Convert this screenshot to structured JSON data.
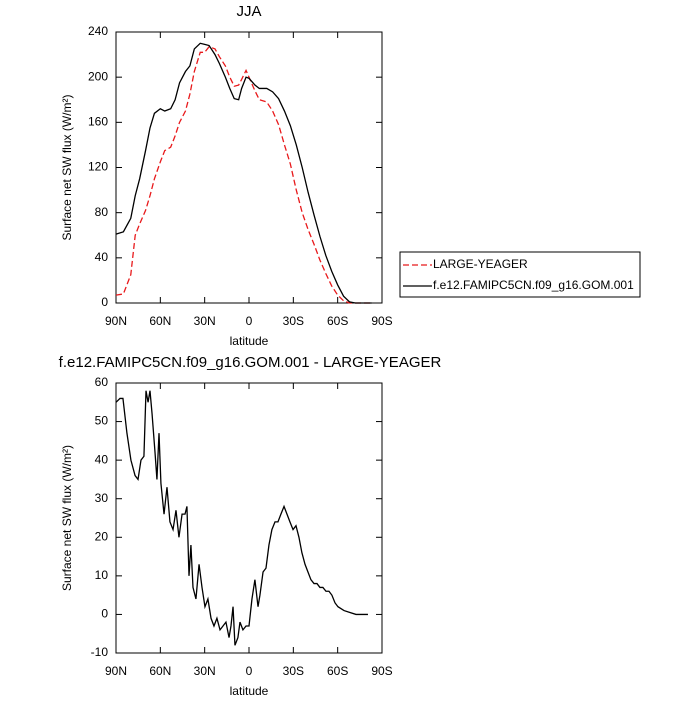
{
  "chart_data": [
    {
      "type": "line",
      "title": "JJA",
      "xlabel": "latitude",
      "ylabel": "Surface net SW flux (W/m²)",
      "x": [
        90,
        85,
        80,
        77,
        74,
        70,
        67,
        64,
        60,
        57,
        53,
        50,
        47,
        43,
        40,
        37,
        33,
        30,
        27,
        23,
        20,
        16,
        13,
        10,
        7,
        5,
        2,
        0,
        -4,
        -7,
        -12,
        -16,
        -20,
        -24,
        -28,
        -32,
        -36,
        -40,
        -44,
        -48,
        -52,
        -56,
        -60,
        -64,
        -68,
        -72,
        -78,
        -83
      ],
      "series": [
        {
          "name": "LARGE-YEAGER",
          "color": "#e8191b",
          "line_style": "dashed",
          "values": [
            7,
            8,
            25,
            60,
            70,
            82,
            95,
            110,
            125,
            135,
            138,
            148,
            160,
            170,
            185,
            205,
            222,
            222,
            227,
            225,
            218,
            210,
            200,
            192,
            193,
            198,
            206,
            200,
            188,
            180,
            178,
            170,
            158,
            140,
            123,
            100,
            80,
            65,
            52,
            38,
            26,
            15,
            7,
            2,
            0,
            0,
            0,
            0
          ]
        },
        {
          "name": "f.e12.FAMIPC5CN.f09_g16.GOM.001",
          "color": "#000000",
          "line_style": "solid",
          "values": [
            61,
            63,
            75,
            95,
            110,
            135,
            155,
            168,
            172,
            170,
            172,
            180,
            195,
            205,
            210,
            225,
            230,
            229,
            228,
            220,
            212,
            200,
            190,
            181,
            180,
            190,
            200,
            199,
            193,
            190,
            190,
            187,
            181,
            170,
            157,
            140,
            120,
            98,
            78,
            59,
            42,
            28,
            16,
            6,
            1,
            0,
            0,
            0
          ]
        }
      ],
      "xlim": [
        90,
        -90
      ],
      "xticks": [
        {
          "value": 90,
          "label": "90N"
        },
        {
          "value": 60,
          "label": "60N"
        },
        {
          "value": 30,
          "label": "30N"
        },
        0,
        {
          "value": -30,
          "label": "30S"
        },
        {
          "value": -60,
          "label": "60S"
        },
        {
          "value": -90,
          "label": "90S"
        }
      ],
      "ylim": [
        0,
        240
      ],
      "yticks": [
        0,
        40,
        80,
        120,
        160,
        200,
        240
      ],
      "legend": "right"
    },
    {
      "type": "line",
      "title": "f.e12.FAMIPC5CN.f09_g16.GOM.001 - LARGE-YEAGER",
      "xlabel": "latitude",
      "ylabel": "Surface net SW flux (W/m²)",
      "x": [
        90,
        87.3,
        85.3,
        82.6,
        79.9,
        77.1,
        75.1,
        73.1,
        71.1,
        69.7,
        68.3,
        67,
        65.6,
        63.6,
        62.3,
        60.9,
        59.6,
        57.5,
        55.5,
        53.5,
        51.4,
        49.4,
        47.4,
        45.3,
        43.3,
        42,
        40.6,
        39.3,
        37.9,
        35.9,
        33.8,
        31.8,
        29.8,
        27.8,
        25.7,
        23.7,
        21.7,
        19.6,
        17.6,
        15.6,
        13.5,
        12.2,
        10.8,
        9.5,
        7.5,
        6.1,
        4.1,
        2,
        0,
        -2,
        -4,
        -6.1,
        -7.4,
        -9.5,
        -11.5,
        -13.5,
        -15.5,
        -17.6,
        -19.6,
        -21.6,
        -23.7,
        -25.7,
        -27.7,
        -29.8,
        -31.8,
        -33.8,
        -35.8,
        -37.9,
        -39.9,
        -41.9,
        -44,
        -46,
        -48,
        -50,
        -52.1,
        -54.1,
        -56.1,
        -58.2,
        -60.2,
        -64.3,
        -68.3,
        -72.4,
        -76.4,
        -80.5
      ],
      "series": [
        {
          "name": null,
          "color": "#000000",
          "line_style": "solid",
          "values": [
            55,
            56,
            56,
            47,
            40,
            36,
            35,
            40,
            41,
            58,
            55,
            58,
            52,
            42,
            35,
            47,
            34,
            26,
            33,
            24,
            22,
            27,
            20,
            26,
            26,
            28,
            10,
            18,
            7,
            4,
            13,
            7,
            2,
            4,
            -1,
            -3,
            -1,
            -4,
            -3,
            -2,
            -6,
            -3,
            2,
            -8,
            -6,
            -2,
            -4,
            -3,
            -3,
            4,
            9,
            2,
            5,
            11,
            12,
            18,
            22,
            24,
            24,
            26,
            28,
            26,
            24,
            22,
            23,
            20,
            16,
            13,
            11,
            9,
            8,
            8,
            7,
            7,
            6,
            6,
            5,
            3,
            2,
            1,
            0.5,
            0,
            0,
            0
          ]
        }
      ],
      "xlim": [
        90,
        -90
      ],
      "xticks": [
        {
          "value": 90,
          "label": "90N"
        },
        {
          "value": 60,
          "label": "60N"
        },
        {
          "value": 30,
          "label": "30N"
        },
        0,
        {
          "value": -30,
          "label": "30S"
        },
        {
          "value": -60,
          "label": "60S"
        },
        {
          "value": -90,
          "label": "90S"
        }
      ],
      "ylim": [
        -10,
        60
      ],
      "yticks": [
        -10,
        0,
        10,
        20,
        30,
        40,
        50,
        60
      ]
    }
  ]
}
